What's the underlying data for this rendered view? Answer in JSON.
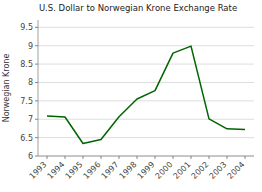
{
  "chart_data": {
    "type": "line",
    "title": "U.S. Dollar to Norwegian Krone Exchange Rate",
    "y_label": "Norwegian Krone",
    "categories": [
      "1993",
      "1994",
      "1995",
      "1996",
      "1997",
      "1998",
      "1999",
      "2000",
      "2001",
      "2002",
      "2003",
      "2004"
    ],
    "values": [
      7.09,
      7.06,
      6.34,
      6.45,
      7.07,
      7.55,
      7.78,
      8.8,
      8.99,
      7.01,
      6.74,
      6.72
    ],
    "color": "#006400",
    "ylim": [
      6.0,
      9.7
    ],
    "yticks": [
      6,
      6.5,
      7,
      7.5,
      8,
      8.5,
      9,
      9.5
    ],
    "grid": true
  }
}
